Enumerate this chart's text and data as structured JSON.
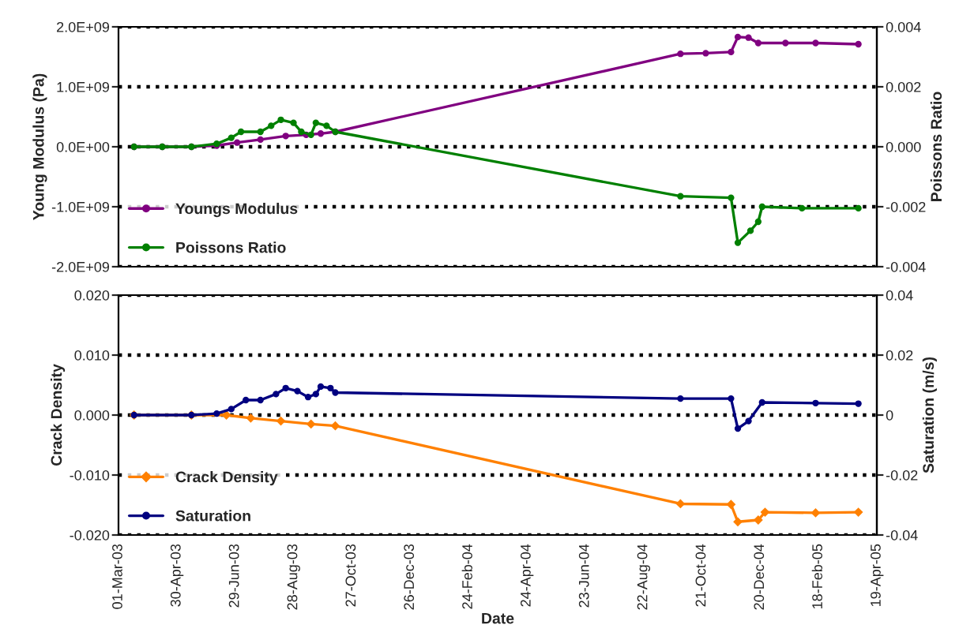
{
  "chart_data": [
    {
      "type": "line",
      "ylabel": "Young Modulus (Pa)",
      "y2label": "Poissons Ratio",
      "xlim": [
        "2003-03-01",
        "2005-04-19"
      ],
      "xticks": [
        {
          "value": "2003-03-01",
          "label": null
        },
        {
          "value": "2003-04-30",
          "label": null
        },
        {
          "value": "2003-06-29",
          "label": null
        },
        {
          "value": "2003-08-28",
          "label": null
        },
        {
          "value": "2003-10-27",
          "label": null
        },
        {
          "value": "2003-12-26",
          "label": null
        },
        {
          "value": "2004-02-24",
          "label": null
        },
        {
          "value": "2004-04-24",
          "label": null
        },
        {
          "value": "2004-06-23",
          "label": null
        },
        {
          "value": "2004-08-22",
          "label": null
        },
        {
          "value": "2004-10-21",
          "label": null
        },
        {
          "value": "2004-12-20",
          "label": null
        },
        {
          "value": "2005-02-18",
          "label": null
        },
        {
          "value": "2005-04-19",
          "label": null
        }
      ],
      "tick_labels": "y",
      "ylim": [
        -2000000000,
        2000000000
      ],
      "yticks": [
        {
          "value": -2000000000,
          "label": "-2.0E+09"
        },
        {
          "value": -1000000000,
          "label": "-1.0E+09"
        },
        {
          "value": 0,
          "label": "0.0E+00"
        },
        {
          "value": 1000000000,
          "label": "1.0E+09"
        },
        {
          "value": 2000000000,
          "label": "2.0E+09"
        }
      ],
      "y2lim": [
        -0.004,
        0.004
      ],
      "y2ticks": [
        {
          "value": -0.004,
          "label": "-0.004"
        },
        {
          "value": -0.002,
          "label": "-0.002"
        },
        {
          "value": 0,
          "label": "0.000"
        },
        {
          "value": 0.002,
          "label": "0.002"
        },
        {
          "value": 0.004,
          "label": "0.004"
        }
      ],
      "grid": "y",
      "legend": "bottom left",
      "series": [
        {
          "name": "Youngs Modulus",
          "color": "#800080",
          "marker": "circle",
          "x": [
            "2003-03-17",
            "2003-04-15",
            "2003-05-15",
            "2003-06-10",
            "2003-07-01",
            "2003-07-25",
            "2003-08-20",
            "2003-09-10",
            "2003-09-25",
            "2003-10-10",
            "2004-09-29",
            "2004-10-25",
            "2004-11-20",
            "2004-11-27",
            "2004-12-08",
            "2004-12-18",
            "2005-01-15",
            "2005-02-15",
            "2005-03-31"
          ],
          "values": [
            0,
            0,
            0,
            20000000,
            70000000,
            120000000,
            180000000,
            200000000,
            220000000,
            250000000,
            1550000000,
            1560000000,
            1580000000,
            1830000000,
            1820000000,
            1730000000,
            1730000000,
            1730000000,
            1710000000
          ]
        },
        {
          "name": "Poissons Ratio",
          "color": "#008000",
          "marker": "circle",
          "axis": "y2",
          "x": [
            "2003-03-17",
            "2003-04-15",
            "2003-05-15",
            "2003-06-10",
            "2003-06-25",
            "2003-07-05",
            "2003-07-25",
            "2003-08-05",
            "2003-08-15",
            "2003-08-28",
            "2003-09-05",
            "2003-09-15",
            "2003-09-20",
            "2003-10-01",
            "2003-10-10",
            "2004-09-29",
            "2004-11-20",
            "2004-11-27",
            "2004-12-10",
            "2004-12-18",
            "2004-12-22",
            "2005-02-01",
            "2005-03-31"
          ],
          "values": [
            0,
            0,
            0,
            0.0001,
            0.0003,
            0.0005,
            0.0005,
            0.0007,
            0.0009,
            0.0008,
            0.0005,
            0.0004,
            0.0008,
            0.0007,
            0.0005,
            -0.00165,
            -0.0017,
            -0.0032,
            -0.0028,
            -0.0025,
            -0.002,
            -0.00205,
            -0.00205
          ]
        }
      ]
    },
    {
      "type": "line",
      "xlabel": "Date",
      "ylabel": "Crack Density",
      "y2label": "Saturation (m/s)",
      "xlim": [
        "2003-03-01",
        "2005-04-19"
      ],
      "xticks": [
        {
          "value": "2003-03-01",
          "label": "01-Mar-03"
        },
        {
          "value": "2003-04-30",
          "label": "30-Apr-03"
        },
        {
          "value": "2003-06-29",
          "label": "29-Jun-03"
        },
        {
          "value": "2003-08-28",
          "label": "28-Aug-03"
        },
        {
          "value": "2003-10-27",
          "label": "27-Oct-03"
        },
        {
          "value": "2003-12-26",
          "label": "26-Dec-03"
        },
        {
          "value": "2004-02-24",
          "label": "24-Feb-04"
        },
        {
          "value": "2004-04-24",
          "label": "24-Apr-04"
        },
        {
          "value": "2004-06-23",
          "label": "23-Jun-04"
        },
        {
          "value": "2004-08-22",
          "label": "22-Aug-04"
        },
        {
          "value": "2004-10-21",
          "label": "21-Oct-04"
        },
        {
          "value": "2004-12-20",
          "label": "20-Dec-04"
        },
        {
          "value": "2005-02-18",
          "label": "18-Feb-05"
        },
        {
          "value": "2005-04-19",
          "label": "19-Apr-05"
        }
      ],
      "ylim": [
        -0.02,
        0.02
      ],
      "yticks": [
        {
          "value": -0.02,
          "label": "-0.020"
        },
        {
          "value": -0.01,
          "label": "-0.010"
        },
        {
          "value": 0,
          "label": "0.000"
        },
        {
          "value": 0.01,
          "label": "0.010"
        },
        {
          "value": 0.02,
          "label": "0.020"
        }
      ],
      "y2lim": [
        -0.04,
        0.04
      ],
      "y2ticks": [
        -0.04,
        -0.02,
        0,
        0.02,
        0.04
      ],
      "grid": "y",
      "legend": "bottom left",
      "series": [
        {
          "name": "Crack Density",
          "color": "#ff8000",
          "marker": "diamond",
          "x": [
            "2003-03-17",
            "2003-05-15",
            "2003-06-20",
            "2003-07-15",
            "2003-08-15",
            "2003-09-15",
            "2003-10-10",
            "2004-09-29",
            "2004-11-20",
            "2004-11-27",
            "2004-12-18",
            "2004-12-25",
            "2005-02-15",
            "2005-03-31"
          ],
          "values": [
            0,
            0,
            0,
            -0.0005,
            -0.001,
            -0.0015,
            -0.0018,
            -0.0148,
            -0.0149,
            -0.0178,
            -0.0175,
            -0.0162,
            -0.0163,
            -0.0162
          ]
        },
        {
          "name": "Saturation",
          "color": "#000080",
          "marker": "circle",
          "axis": "y2",
          "x": [
            "2003-03-17",
            "2003-05-15",
            "2003-06-10",
            "2003-06-25",
            "2003-07-10",
            "2003-07-25",
            "2003-08-10",
            "2003-08-20",
            "2003-09-01",
            "2003-09-12",
            "2003-09-20",
            "2003-09-25",
            "2003-10-05",
            "2003-10-10",
            "2004-09-29",
            "2004-11-20",
            "2004-11-27",
            "2004-12-08",
            "2004-12-22",
            "2005-02-15",
            "2005-03-31"
          ],
          "values": [
            0,
            0,
            0.0005,
            0.002,
            0.005,
            0.005,
            0.007,
            0.009,
            0.008,
            0.006,
            0.007,
            0.0095,
            0.009,
            0.0075,
            0.0055,
            0.0055,
            -0.0045,
            -0.002,
            0.0042,
            0.004,
            0.0038
          ]
        }
      ]
    }
  ]
}
